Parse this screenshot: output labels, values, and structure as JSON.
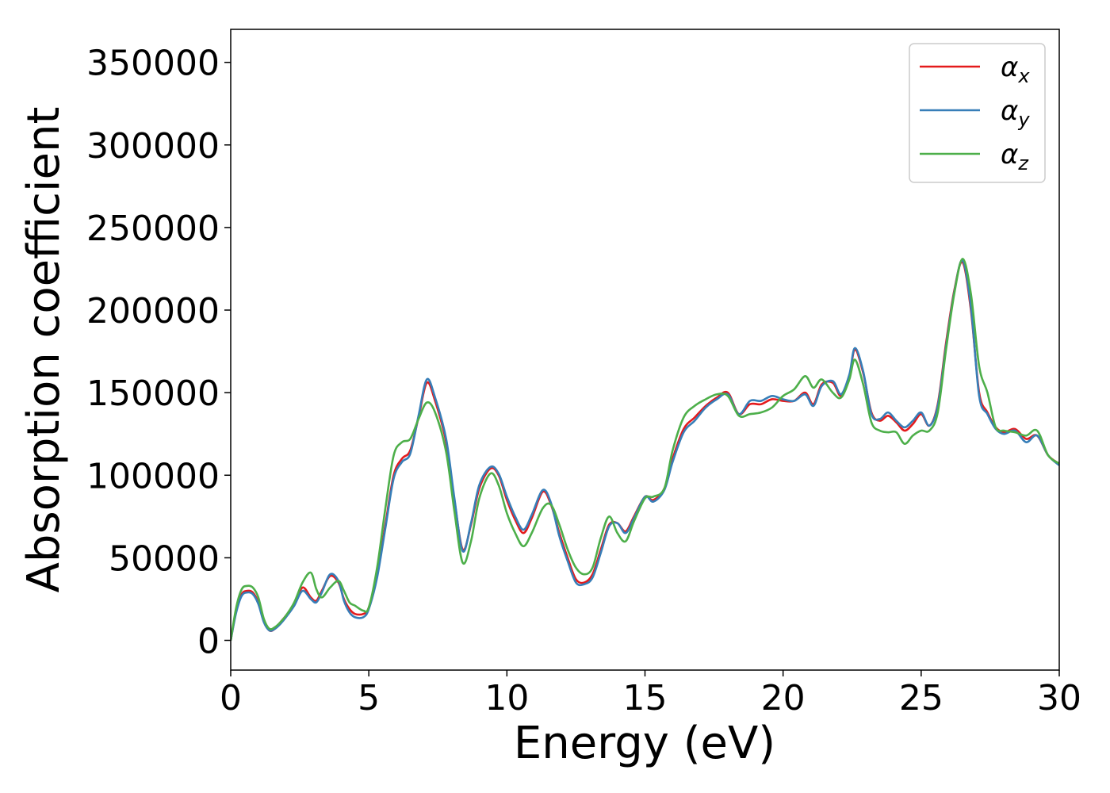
{
  "chart_data": {
    "type": "line",
    "title": "",
    "xlabel": "Energy (eV)",
    "ylabel": "Absorption coefficient",
    "xlim": [
      0,
      30
    ],
    "ylim": [
      -18000,
      370000
    ],
    "xticks": [
      "0",
      "5",
      "10",
      "15",
      "20",
      "25",
      "30"
    ],
    "xtick_values": [
      0,
      5,
      10,
      15,
      20,
      25,
      30
    ],
    "yticks": [
      "0",
      "50000",
      "100000",
      "150000",
      "200000",
      "250000",
      "300000",
      "350000"
    ],
    "ytick_values": [
      0,
      50000,
      100000,
      150000,
      200000,
      250000,
      300000,
      350000
    ],
    "grid": false,
    "legend_position": "top-right",
    "series": [
      {
        "name": "α",
        "sub": "x",
        "color": "#e41a1c",
        "x": [
          0,
          0.2,
          0.4,
          0.6,
          0.8,
          1.0,
          1.2,
          1.4,
          1.6,
          1.8,
          2.0,
          2.3,
          2.6,
          2.9,
          3.1,
          3.3,
          3.6,
          3.9,
          4.1,
          4.3,
          4.5,
          4.8,
          5.0,
          5.3,
          5.6,
          5.9,
          6.2,
          6.5,
          6.8,
          7.1,
          7.4,
          7.8,
          8.1,
          8.4,
          8.7,
          9.0,
          9.4,
          9.7,
          10.0,
          10.3,
          10.6,
          10.9,
          11.3,
          11.6,
          11.9,
          12.2,
          12.5,
          12.8,
          13.1,
          13.4,
          13.7,
          14.0,
          14.3,
          14.6,
          15.0,
          15.3,
          15.7,
          16.0,
          16.4,
          16.8,
          17.2,
          17.6,
          18.0,
          18.4,
          18.8,
          19.2,
          19.6,
          20.0,
          20.4,
          20.8,
          21.1,
          21.4,
          21.8,
          22.1,
          22.4,
          22.6,
          22.9,
          23.2,
          23.5,
          23.8,
          24.1,
          24.4,
          24.7,
          25.0,
          25.3,
          25.6,
          25.9,
          26.2,
          26.5,
          26.8,
          27.1,
          27.4,
          27.7,
          28.0,
          28.4,
          28.8,
          29.2,
          29.6,
          30.0
        ],
        "values": [
          0,
          18000,
          28000,
          30000,
          29000,
          23000,
          12000,
          6000,
          7000,
          11000,
          15000,
          22000,
          32000,
          26000,
          24000,
          30000,
          39000,
          35000,
          25000,
          19000,
          16000,
          16000,
          20000,
          40000,
          70000,
          100000,
          110000,
          115000,
          135000,
          156000,
          145000,
          120000,
          85000,
          55000,
          70000,
          92000,
          104000,
          100000,
          85000,
          73000,
          65000,
          74000,
          90000,
          82000,
          65000,
          50000,
          37000,
          35000,
          40000,
          55000,
          70000,
          71000,
          66000,
          75000,
          87000,
          85000,
          92000,
          110000,
          128000,
          135000,
          142000,
          147000,
          150000,
          137000,
          143000,
          143000,
          146000,
          145000,
          145000,
          150000,
          143000,
          155000,
          156000,
          148000,
          160000,
          176000,
          162000,
          138000,
          133000,
          136000,
          132000,
          127000,
          131000,
          137000,
          130000,
          143000,
          180000,
          212000,
          229000,
          200000,
          150000,
          138000,
          129000,
          126000,
          128000,
          122000,
          124000,
          112000,
          107000
        ]
      },
      {
        "name": "α",
        "sub": "y",
        "color": "#377eb8",
        "x": [
          0,
          0.2,
          0.4,
          0.6,
          0.8,
          1.0,
          1.2,
          1.4,
          1.6,
          1.8,
          2.0,
          2.3,
          2.6,
          2.9,
          3.1,
          3.3,
          3.6,
          3.9,
          4.1,
          4.3,
          4.5,
          4.8,
          5.0,
          5.3,
          5.6,
          5.9,
          6.2,
          6.5,
          6.8,
          7.1,
          7.4,
          7.8,
          8.1,
          8.4,
          8.7,
          9.0,
          9.4,
          9.7,
          10.0,
          10.3,
          10.6,
          10.9,
          11.3,
          11.6,
          11.9,
          12.2,
          12.5,
          12.8,
          13.1,
          13.4,
          13.7,
          14.0,
          14.3,
          14.6,
          15.0,
          15.3,
          15.7,
          16.0,
          16.4,
          16.8,
          17.2,
          17.6,
          18.0,
          18.4,
          18.8,
          19.2,
          19.6,
          20.0,
          20.4,
          20.8,
          21.1,
          21.4,
          21.8,
          22.1,
          22.4,
          22.6,
          22.9,
          23.2,
          23.5,
          23.8,
          24.1,
          24.4,
          24.7,
          25.0,
          25.3,
          25.6,
          25.9,
          26.2,
          26.5,
          26.8,
          27.1,
          27.4,
          27.7,
          28.0,
          28.4,
          28.8,
          29.2,
          29.6,
          30.0
        ],
        "values": [
          0,
          17000,
          27000,
          29000,
          28000,
          22000,
          11000,
          6000,
          7000,
          10000,
          14000,
          21000,
          30000,
          25000,
          23000,
          29000,
          40000,
          36000,
          24000,
          17000,
          14000,
          14000,
          19000,
          38000,
          68000,
          98000,
          108000,
          113000,
          136000,
          158000,
          147000,
          122000,
          86000,
          54000,
          71000,
          94000,
          105000,
          101000,
          87000,
          75000,
          67000,
          76000,
          91000,
          83000,
          63000,
          48000,
          35000,
          34000,
          38000,
          53000,
          69000,
          71000,
          65000,
          74000,
          87000,
          84000,
          91000,
          108000,
          126000,
          133000,
          141000,
          146000,
          149000,
          137000,
          145000,
          145000,
          148000,
          146000,
          145000,
          149000,
          142000,
          154000,
          157000,
          149000,
          161000,
          177000,
          163000,
          137000,
          134000,
          138000,
          133000,
          129000,
          133000,
          138000,
          130000,
          142000,
          178000,
          211000,
          230000,
          202000,
          148000,
          137000,
          128000,
          125000,
          127000,
          120000,
          124000,
          112000,
          106000
        ]
      },
      {
        "name": "α",
        "sub": "z",
        "color": "#4daf4a",
        "x": [
          0,
          0.2,
          0.4,
          0.6,
          0.8,
          1.0,
          1.2,
          1.4,
          1.6,
          1.8,
          2.0,
          2.3,
          2.6,
          2.9,
          3.1,
          3.3,
          3.6,
          3.9,
          4.1,
          4.3,
          4.5,
          4.8,
          5.0,
          5.3,
          5.6,
          5.9,
          6.2,
          6.5,
          6.8,
          7.1,
          7.4,
          7.8,
          8.1,
          8.4,
          8.7,
          9.0,
          9.4,
          9.7,
          10.0,
          10.3,
          10.6,
          10.9,
          11.3,
          11.6,
          11.9,
          12.2,
          12.5,
          12.8,
          13.1,
          13.4,
          13.7,
          14.0,
          14.3,
          14.6,
          15.0,
          15.3,
          15.7,
          16.0,
          16.4,
          16.8,
          17.2,
          17.6,
          18.0,
          18.4,
          18.8,
          19.2,
          19.6,
          20.0,
          20.4,
          20.8,
          21.1,
          21.4,
          21.8,
          22.1,
          22.4,
          22.6,
          22.9,
          23.2,
          23.5,
          23.8,
          24.1,
          24.4,
          24.7,
          25.0,
          25.3,
          25.6,
          25.9,
          26.2,
          26.5,
          26.8,
          27.1,
          27.4,
          27.7,
          28.0,
          28.4,
          28.8,
          29.2,
          29.6,
          30.0
        ],
        "values": [
          0,
          20000,
          31000,
          33000,
          32000,
          26000,
          13000,
          7000,
          8000,
          11000,
          15000,
          23000,
          35000,
          41000,
          31000,
          26000,
          32000,
          36000,
          30000,
          23000,
          21000,
          18000,
          20000,
          44000,
          80000,
          112000,
          120000,
          122000,
          134000,
          144000,
          138000,
          114000,
          78000,
          47000,
          60000,
          86000,
          101000,
          94000,
          77000,
          65000,
          57000,
          65000,
          80000,
          82000,
          70000,
          55000,
          44000,
          40000,
          44000,
          62000,
          75000,
          65000,
          60000,
          72000,
          86000,
          87000,
          92000,
          115000,
          135000,
          142000,
          146000,
          149000,
          148000,
          136000,
          137000,
          138000,
          141000,
          148000,
          152000,
          160000,
          153000,
          158000,
          150000,
          147000,
          158000,
          170000,
          155000,
          132000,
          127000,
          126000,
          126000,
          119000,
          124000,
          127000,
          127000,
          138000,
          176000,
          210000,
          231000,
          210000,
          166000,
          150000,
          129000,
          127000,
          126000,
          124000,
          127000,
          112000,
          107000
        ]
      }
    ]
  }
}
